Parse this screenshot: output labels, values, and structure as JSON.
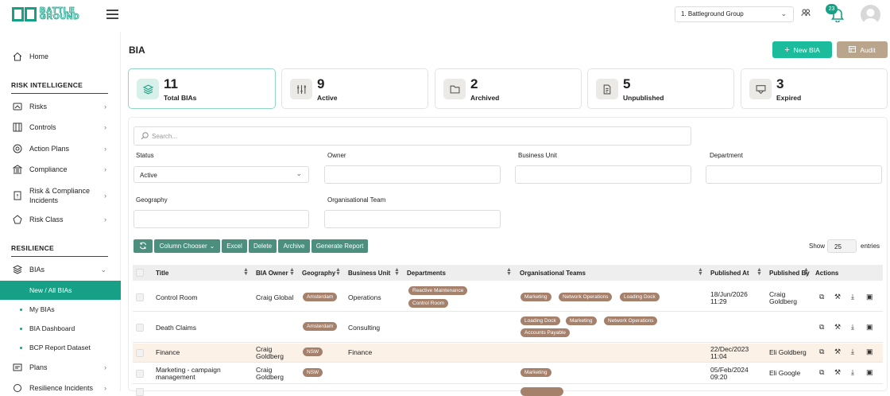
{
  "header": {
    "logo_text_top": "BATTLE",
    "logo_text_bottom": "GROUND",
    "group_select": "1. Battleground Group",
    "notifications_count": "23"
  },
  "sidebar": {
    "home": "Home",
    "section_risk": "RISK INTELLIGENCE",
    "risks": "Risks",
    "controls": "Controls",
    "action_plans": "Action Plans",
    "compliance": "Compliance",
    "incidents_1": "Risk & Compliance",
    "incidents_2": "Incidents",
    "risk_class": "Risk Class",
    "section_resilience": "RESILIENCE",
    "bias": "BIAs",
    "new_all_bias": "New / All BIAs",
    "my_bias": "My BIAs",
    "bia_dashboard": "BIA Dashboard",
    "bcp_report": "BCP Report Dataset",
    "plans": "Plans",
    "resilience_incidents": "Resilience Incidents"
  },
  "page": {
    "title": "BIA",
    "new_bia": "New BIA",
    "audit": "Audit"
  },
  "stats": [
    {
      "num": "11",
      "label": "Total BIAs"
    },
    {
      "num": "9",
      "label": "Active"
    },
    {
      "num": "2",
      "label": "Archived"
    },
    {
      "num": "5",
      "label": "Unpublished"
    },
    {
      "num": "3",
      "label": "Expired"
    }
  ],
  "filters": {
    "search_placeholder": "Search...",
    "status_label": "Status",
    "status_value": "Active",
    "owner_label": "Owner",
    "business_unit_label": "Business Unit",
    "department_label": "Department",
    "geography_label": "Geography",
    "org_team_label": "Organisational Team"
  },
  "toolbar": {
    "column_chooser": "Column Chooser",
    "excel": "Excel",
    "delete": "Delete",
    "archive": "Archive",
    "generate_report": "Generate Report",
    "show": "Show",
    "entries_value": "25",
    "entries": "entries"
  },
  "table": {
    "headers": {
      "title": "Title",
      "owner": "BIA Owner",
      "geography": "Geography",
      "business_unit": "Business Unit",
      "departments": "Departments",
      "org_teams": "Organisational Teams",
      "published_at": "Published At",
      "published_by": "Published By",
      "actions": "Actions"
    },
    "rows": [
      {
        "title": "Control Room",
        "owner": "Craig Global",
        "geography": "Amsterdam",
        "business_unit": "Operations",
        "departments": [
          "Reactive Maintenance",
          "Control Room"
        ],
        "teams": [
          "Marketing",
          "Network Operations",
          "Loading Dock"
        ],
        "published_at_1": "18/Jun/2026",
        "published_at_2": "11:29",
        "published_by_1": "Craig",
        "published_by_2": "Goldberg"
      },
      {
        "title": "Death Claims",
        "owner": "",
        "geography": "Amsterdam",
        "business_unit": "Consulting",
        "departments": [],
        "teams": [
          "Loading Dock",
          "Marketing",
          "Network Operations",
          "Accounts Payable"
        ],
        "published_at_1": "",
        "published_at_2": "",
        "published_by_1": "",
        "published_by_2": ""
      },
      {
        "title": "Finance",
        "owner_1": "Craig",
        "owner_2": "Goldberg",
        "geography": "NSW",
        "business_unit": "Finance",
        "departments": [],
        "teams": [],
        "published_at_1": "22/Dec/2023",
        "published_at_2": "11:04",
        "published_by": "Eli Goldberg"
      },
      {
        "title_1": "Marketing - campaign",
        "title_2": "management",
        "owner_1": "Craig",
        "owner_2": "Goldberg",
        "geography": "NSW",
        "business_unit": "",
        "departments": [],
        "teams": [
          "Marketing"
        ],
        "published_at_1": "05/Feb/2024",
        "published_at_2": "09:20",
        "published_by": "Eli Google"
      }
    ]
  },
  "colors": {
    "accent": "#16a085",
    "button_teal": "#1abc9c",
    "audit_brown": "#b9a58c",
    "tag_brown": "#a5806b",
    "row_highlight": "#fbf1e6"
  }
}
